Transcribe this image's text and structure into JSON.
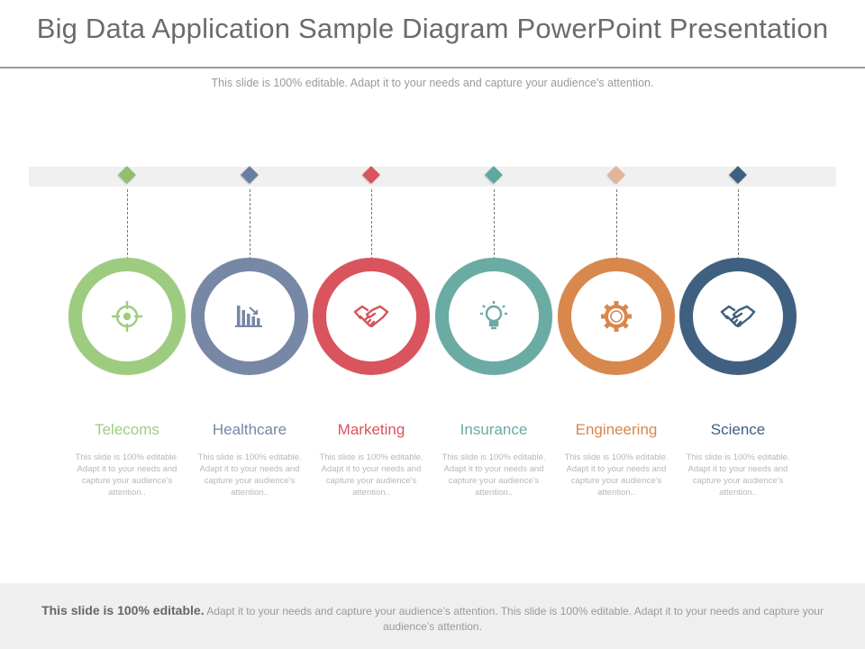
{
  "slide": {
    "title": "Big Data Application Sample Diagram PowerPoint Presentation",
    "subtitle": "This slide is 100% editable. Adapt it to your needs and capture your audience's attention."
  },
  "items": [
    {
      "label": "Telecoms",
      "color": "#9dcc80",
      "diamond_color": "#8fbf6f",
      "icon": "target-icon",
      "description": "This slide is 100% editable. Adapt it to your needs and capture your audience's attention.."
    },
    {
      "label": "Healthcare",
      "color": "#7787a6",
      "diamond_color": "#6a7ea3",
      "icon": "bar-chart-icon",
      "description": "This slide is 100% editable. Adapt it to your needs and capture your audience's attention.."
    },
    {
      "label": "Marketing",
      "color": "#d9545c",
      "diamond_color": "#d9545c",
      "icon": "handshake-icon",
      "description": "This slide is 100% editable. Adapt it to your needs and capture your audience's attention.."
    },
    {
      "label": "Insurance",
      "color": "#6aaba3",
      "diamond_color": "#5fa89e",
      "icon": "lightbulb-icon",
      "description": "This slide is 100% editable. Adapt it to your needs and capture your audience's attention.."
    },
    {
      "label": "Engineering",
      "color": "#d8874d",
      "diamond_color": "#e2b596",
      "icon": "gear-icon",
      "description": "This slide is 100% editable. Adapt it to your needs and capture your audience's attention.."
    },
    {
      "label": "Science",
      "color": "#3f6080",
      "diamond_color": "#3f6080",
      "icon": "handshake-icon",
      "description": "This slide is 100% editable. Adapt it to your needs and capture your audience's attention.."
    }
  ],
  "footer": {
    "bold": "This slide is 100% editable.",
    "text": " Adapt it to your needs and capture your audience’s attention. This slide is 100% editable. Adapt it to your needs and capture your audience’s attention."
  }
}
